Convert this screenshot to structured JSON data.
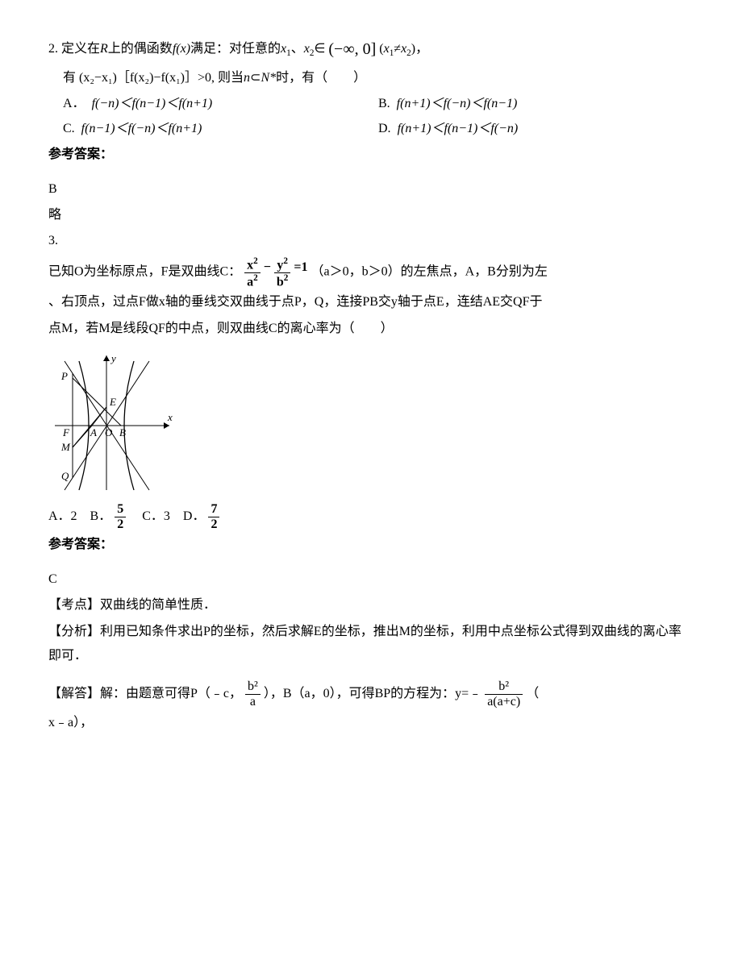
{
  "q2": {
    "number": "2.",
    "stem_l1_a": "定义在",
    "stem_l1_b": "R",
    "stem_l1_c": "上的偶函数",
    "stem_l1_d": "f(x)",
    "stem_l1_e": "满足：对任意的",
    "stem_l1_f": "x",
    "stem_l1_g": "、",
    "stem_l1_h": "x",
    "stem_l1_i": "∈",
    "interval": "(−∞, 0]",
    "stem_l1_j": "(",
    "stem_l1_k": "x",
    "stem_l1_l": "≠",
    "stem_l1_m": "x",
    "stem_l1_n": ")，",
    "stem_l2_a": "有",
    "stem_l2_expr": "(x₂−x₁)［f(x₂)−f(x₁)］>0,",
    "stem_l2_b": "则当",
    "stem_l2_c": "n",
    "stem_l2_nset": "N*",
    "stem_l2_d": "时，有（　　）",
    "opts": {
      "A": "A．",
      "A_expr": "f(−n)＜f(n−1)＜f(n+1)",
      "B": "B.",
      "B_expr": "f(n+1)＜f(−n)＜f(n−1)",
      "C": "C.",
      "C_expr": "f(n−1)＜f(−n)＜f(n+1)",
      "D": "D.",
      "D_expr": "f(n+1)＜f(n−1)＜f(−n)"
    },
    "answer_label": "参考答案：",
    "answer": "B",
    "explain": "略"
  },
  "q3": {
    "number": "3.",
    "stem_l1_a": "已知O为坐标原点，F是双曲线C：",
    "eq_x2": "x",
    "eq_a2": "a",
    "eq_minus": "−",
    "eq_y2": "y",
    "eq_b2": "b",
    "eq_eq1": "=1",
    "stem_l1_b": "（a＞0，b＞0）的左焦点，A，B分别为左",
    "stem_l2": "、右顶点，过点F做x轴的垂线交双曲线于点P，Q，连接PB交y轴于点E，连结AE交QF于",
    "stem_l3": "点M，若M是线段QF的中点，则双曲线C的离心率为（　　）",
    "diagram": {
      "width": 160,
      "height": 180,
      "stroke": "#000000",
      "labels": {
        "P": "P",
        "Q": "Q",
        "F": "F",
        "A": "A",
        "O": "O",
        "B": "B",
        "E": "E",
        "M": "M",
        "x": "x",
        "y": "y"
      }
    },
    "opts_line_a": "A．2　B．",
    "opt_b_num": "5",
    "opt_b_den": "2",
    "opts_line_b": "　C．3　D．",
    "opt_d_num": "7",
    "opt_d_den": "2",
    "answer_label": "参考答案：",
    "answer": "C",
    "kaodian_label": "【考点】",
    "kaodian": "双曲线的简单性质．",
    "fenxi_label": "【分析】",
    "fenxi": "利用已知条件求出P的坐标，然后求解E的坐标，推出M的坐标，利用中点坐标公式得到双曲线的离心率即可．",
    "jieda_label": "【解答】",
    "jieda_a": "解：由题意可得P（﹣c，",
    "jf1_num": "b²",
    "jf1_den": "a",
    "jieda_b": "），B（a，0），可得BP的方程为：y=﹣",
    "jf2_num": "b²",
    "jf2_den": "a(a+c)",
    "jieda_c": "（",
    "jieda_l2": "x﹣a），"
  }
}
